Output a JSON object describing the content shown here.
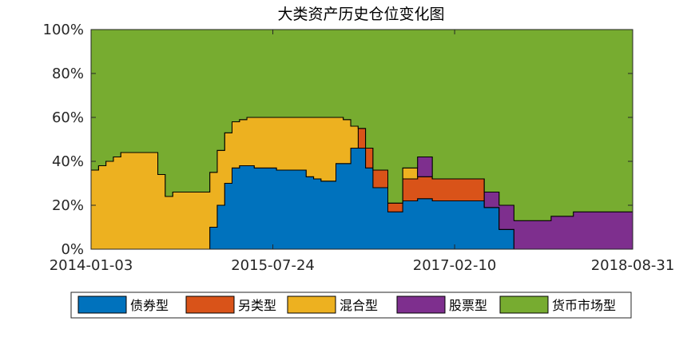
{
  "chart_data": {
    "type": "area",
    "stacked": true,
    "title": "大类资产历史仓位变化图",
    "xlabel": "",
    "ylabel": "",
    "ylim": [
      0,
      1
    ],
    "y_ticks": [
      "0%",
      "20%",
      "40%",
      "60%",
      "80%",
      "100%"
    ],
    "x_tick_labels": [
      "2014-01-03",
      "2015-07-24",
      "2017-02-10",
      "2018-08-31"
    ],
    "x_range_index": [
      0,
      73
    ],
    "x_tick_index": [
      0,
      24.5,
      49,
      73
    ],
    "grid": false,
    "legend_position": "bottom",
    "colors": {
      "债券型": "#0072BD",
      "另类型": "#D95319",
      "混合型": "#EDB120",
      "股票型": "#7E2F8E",
      "货币市场型": "#77AC30"
    },
    "series": [
      {
        "name": "债券型",
        "values": [
          0.0,
          0.0,
          0.0,
          0.0,
          0.0,
          0.0,
          0.0,
          0.0,
          0.0,
          0.0,
          0.0,
          0.0,
          0.0,
          0.0,
          0.0,
          0.0,
          0.1,
          0.2,
          0.3,
          0.37,
          0.38,
          0.38,
          0.37,
          0.37,
          0.37,
          0.36,
          0.36,
          0.36,
          0.36,
          0.33,
          0.32,
          0.31,
          0.31,
          0.39,
          0.39,
          0.46,
          0.46,
          0.37,
          0.28,
          0.28,
          0.17,
          0.17,
          0.22,
          0.22,
          0.23,
          0.23,
          0.22,
          0.22,
          0.22,
          0.22,
          0.22,
          0.22,
          0.22,
          0.19,
          0.19,
          0.09,
          0.09,
          0.0,
          0.0,
          0.0,
          0.0,
          0.0,
          0.0,
          0.0,
          0.0,
          0.0,
          0.0,
          0.0,
          0.0,
          0.0,
          0.0,
          0.0,
          0.0
        ]
      },
      {
        "name": "另类型",
        "values": [
          0.0,
          0.0,
          0.0,
          0.0,
          0.0,
          0.0,
          0.0,
          0.0,
          0.0,
          0.0,
          0.0,
          0.0,
          0.0,
          0.0,
          0.0,
          0.0,
          0.0,
          0.0,
          0.0,
          0.0,
          0.0,
          0.0,
          0.0,
          0.0,
          0.0,
          0.0,
          0.0,
          0.0,
          0.0,
          0.0,
          0.0,
          0.0,
          0.0,
          0.0,
          0.0,
          0.0,
          0.09,
          0.09,
          0.08,
          0.08,
          0.04,
          0.04,
          0.1,
          0.1,
          0.1,
          0.1,
          0.1,
          0.1,
          0.1,
          0.1,
          0.1,
          0.1,
          0.1,
          0.0,
          0.0,
          0.0,
          0.0,
          0.0,
          0.0,
          0.0,
          0.0,
          0.0,
          0.0,
          0.0,
          0.0,
          0.0,
          0.0,
          0.0,
          0.0,
          0.0,
          0.0,
          0.0,
          0.0
        ]
      },
      {
        "name": "混合型",
        "values": [
          0.36,
          0.38,
          0.4,
          0.42,
          0.44,
          0.44,
          0.44,
          0.44,
          0.44,
          0.34,
          0.24,
          0.26,
          0.26,
          0.26,
          0.26,
          0.26,
          0.25,
          0.25,
          0.23,
          0.21,
          0.21,
          0.22,
          0.23,
          0.23,
          0.23,
          0.24,
          0.24,
          0.24,
          0.24,
          0.27,
          0.28,
          0.29,
          0.29,
          0.21,
          0.2,
          0.1,
          0.0,
          0.0,
          0.0,
          0.0,
          0.0,
          0.0,
          0.05,
          0.05,
          0.0,
          0.0,
          0.0,
          0.0,
          0.0,
          0.0,
          0.0,
          0.0,
          0.0,
          0.0,
          0.0,
          0.0,
          0.0,
          0.0,
          0.0,
          0.0,
          0.0,
          0.0,
          0.0,
          0.0,
          0.0,
          0.0,
          0.0,
          0.0,
          0.0,
          0.0,
          0.0,
          0.0,
          0.0
        ]
      },
      {
        "name": "股票型",
        "values": [
          0.0,
          0.0,
          0.0,
          0.0,
          0.0,
          0.0,
          0.0,
          0.0,
          0.0,
          0.0,
          0.0,
          0.0,
          0.0,
          0.0,
          0.0,
          0.0,
          0.0,
          0.0,
          0.0,
          0.0,
          0.0,
          0.0,
          0.0,
          0.0,
          0.0,
          0.0,
          0.0,
          0.0,
          0.0,
          0.0,
          0.0,
          0.0,
          0.0,
          0.0,
          0.0,
          0.0,
          0.0,
          0.0,
          0.0,
          0.0,
          0.0,
          0.0,
          0.0,
          0.0,
          0.09,
          0.09,
          0.0,
          0.0,
          0.0,
          0.0,
          0.0,
          0.0,
          0.0,
          0.07,
          0.07,
          0.11,
          0.11,
          0.13,
          0.13,
          0.13,
          0.13,
          0.13,
          0.15,
          0.15,
          0.15,
          0.17,
          0.17,
          0.17,
          0.17,
          0.17,
          0.17,
          0.17,
          0.17
        ]
      },
      {
        "name": "货币市场型",
        "values": [
          0.64,
          0.62,
          0.6,
          0.58,
          0.56,
          0.56,
          0.56,
          0.56,
          0.56,
          0.66,
          0.76,
          0.74,
          0.74,
          0.74,
          0.74,
          0.74,
          0.65,
          0.55,
          0.47,
          0.42,
          0.41,
          0.4,
          0.4,
          0.4,
          0.4,
          0.4,
          0.4,
          0.4,
          0.4,
          0.4,
          0.4,
          0.4,
          0.4,
          0.4,
          0.41,
          0.44,
          0.45,
          0.54,
          0.64,
          0.64,
          0.79,
          0.79,
          0.63,
          0.63,
          0.58,
          0.58,
          0.68,
          0.68,
          0.68,
          0.68,
          0.68,
          0.68,
          0.68,
          0.74,
          0.74,
          0.8,
          0.8,
          0.87,
          0.87,
          0.87,
          0.87,
          0.87,
          0.85,
          0.85,
          0.85,
          0.83,
          0.83,
          0.83,
          0.83,
          0.83,
          0.83,
          0.83,
          0.83
        ]
      }
    ]
  }
}
